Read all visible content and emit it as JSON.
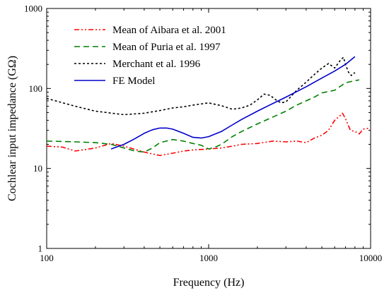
{
  "chart_data": {
    "type": "line",
    "xlabel": "Frequency (Hz)",
    "ylabel": "Cochlear input impedance (GΩ)",
    "xscale": "log",
    "yscale": "log",
    "xlim": [
      100,
      10000
    ],
    "ylim": [
      1,
      1000
    ],
    "x_ticks": [
      {
        "value": 100,
        "label": "100"
      },
      {
        "value": 1000,
        "label": "1000"
      },
      {
        "value": 10000,
        "label": "10000"
      }
    ],
    "y_ticks": [
      {
        "value": 1,
        "label": "1"
      },
      {
        "value": 10,
        "label": "10"
      },
      {
        "value": 100,
        "label": "100"
      },
      {
        "value": 1000,
        "label": "1000"
      }
    ],
    "grid": false,
    "legend_position": "top-left",
    "series": [
      {
        "name": "Mean of Aibara et al. 2001",
        "color": "#ff0000",
        "dash": "dash-dot-dot",
        "points": [
          [
            100,
            19
          ],
          [
            125,
            18.5
          ],
          [
            150,
            16.5
          ],
          [
            200,
            18
          ],
          [
            250,
            20.5
          ],
          [
            300,
            19
          ],
          [
            400,
            16
          ],
          [
            500,
            14.5
          ],
          [
            600,
            15.5
          ],
          [
            700,
            16.5
          ],
          [
            800,
            17
          ],
          [
            1000,
            17.5
          ],
          [
            1200,
            18
          ],
          [
            1400,
            19
          ],
          [
            1600,
            20
          ],
          [
            2000,
            20.5
          ],
          [
            2500,
            22
          ],
          [
            3000,
            21.5
          ],
          [
            3500,
            22
          ],
          [
            4000,
            21
          ],
          [
            4500,
            24
          ],
          [
            5000,
            26
          ],
          [
            5500,
            30
          ],
          [
            6000,
            40
          ],
          [
            6500,
            46
          ],
          [
            6700,
            49
          ],
          [
            7000,
            42
          ],
          [
            7500,
            30
          ],
          [
            8000,
            29
          ],
          [
            8500,
            27
          ],
          [
            9000,
            31
          ],
          [
            10000,
            32
          ]
        ]
      },
      {
        "name": "Mean of Puria et al. 1997",
        "color": "#008000",
        "dash": "dash",
        "points": [
          [
            100,
            22
          ],
          [
            150,
            21.5
          ],
          [
            200,
            21
          ],
          [
            250,
            20
          ],
          [
            300,
            18
          ],
          [
            350,
            16.5
          ],
          [
            400,
            16
          ],
          [
            450,
            18
          ],
          [
            500,
            21
          ],
          [
            600,
            23
          ],
          [
            700,
            22
          ],
          [
            800,
            20.5
          ],
          [
            900,
            19.5
          ],
          [
            1000,
            17.5
          ],
          [
            1100,
            18.5
          ],
          [
            1200,
            20
          ],
          [
            1400,
            25
          ],
          [
            1600,
            29
          ],
          [
            2000,
            36
          ],
          [
            2500,
            44
          ],
          [
            3000,
            52
          ],
          [
            3500,
            62
          ],
          [
            4000,
            70
          ],
          [
            4500,
            78
          ],
          [
            5000,
            88
          ],
          [
            6000,
            95
          ],
          [
            7000,
            118
          ],
          [
            8000,
            125
          ],
          [
            8500,
            128
          ]
        ]
      },
      {
        "name": "Merchant et al. 1996",
        "color": "#000000",
        "dash": "dot",
        "points": [
          [
            100,
            75
          ],
          [
            150,
            60
          ],
          [
            200,
            52
          ],
          [
            300,
            47
          ],
          [
            400,
            49
          ],
          [
            500,
            53
          ],
          [
            600,
            57
          ],
          [
            700,
            59
          ],
          [
            800,
            62
          ],
          [
            1000,
            66
          ],
          [
            1200,
            61
          ],
          [
            1400,
            55
          ],
          [
            1600,
            57
          ],
          [
            1800,
            62
          ],
          [
            2000,
            72
          ],
          [
            2200,
            85
          ],
          [
            2400,
            82
          ],
          [
            2600,
            72
          ],
          [
            2800,
            66
          ],
          [
            3000,
            68
          ],
          [
            3500,
            95
          ],
          [
            4000,
            120
          ],
          [
            4500,
            150
          ],
          [
            5000,
            180
          ],
          [
            5500,
            205
          ],
          [
            6000,
            180
          ],
          [
            6500,
            225
          ],
          [
            6800,
            245
          ],
          [
            7000,
            200
          ],
          [
            7300,
            160
          ],
          [
            7600,
            145
          ],
          [
            8000,
            158
          ]
        ]
      },
      {
        "name": "FE Model",
        "color": "#0000cc",
        "dash": "solid",
        "points": [
          [
            250,
            17.5
          ],
          [
            300,
            20
          ],
          [
            350,
            23.5
          ],
          [
            400,
            27.5
          ],
          [
            450,
            30.5
          ],
          [
            500,
            32
          ],
          [
            550,
            32
          ],
          [
            600,
            31
          ],
          [
            700,
            27.5
          ],
          [
            800,
            24.5
          ],
          [
            900,
            24
          ],
          [
            1000,
            25
          ],
          [
            1200,
            29
          ],
          [
            1400,
            35
          ],
          [
            1600,
            41
          ],
          [
            2000,
            52
          ],
          [
            2500,
            65
          ],
          [
            3000,
            78
          ],
          [
            4000,
            105
          ],
          [
            5000,
            135
          ],
          [
            6000,
            165
          ],
          [
            7000,
            200
          ],
          [
            8000,
            250
          ]
        ]
      }
    ]
  }
}
